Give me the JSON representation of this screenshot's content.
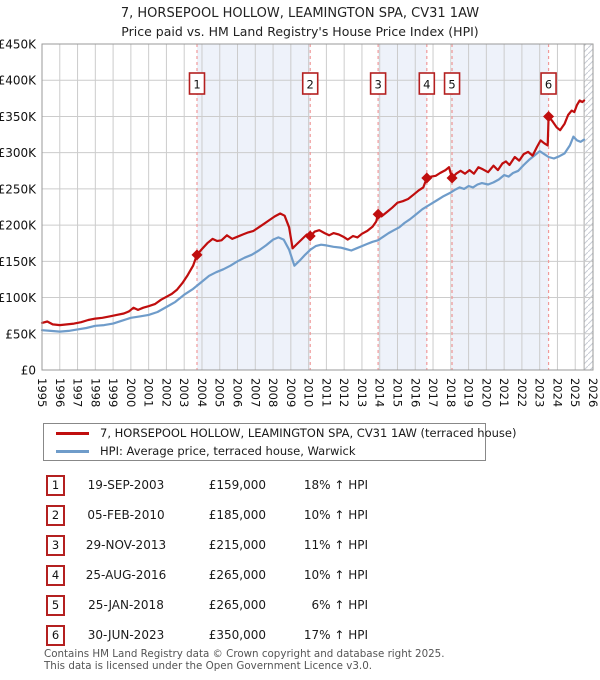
{
  "chart_data": {
    "type": "line",
    "title": "7, HORSEPOOL HOLLOW, LEAMINGTON SPA, CV31 1AW",
    "subtitle": "Price paid vs. HM Land Registry's House Price Index (HPI)",
    "x_range": [
      1995,
      2026
    ],
    "y_range": [
      0,
      450
    ],
    "values_unit": "GBP thousands",
    "grid": true,
    "legend_position": "below",
    "x_ticks": [
      1995,
      1996,
      1997,
      1998,
      1999,
      2000,
      2001,
      2002,
      2003,
      2004,
      2005,
      2006,
      2007,
      2008,
      2009,
      2010,
      2011,
      2012,
      2013,
      2014,
      2015,
      2016,
      2017,
      2018,
      2019,
      2020,
      2021,
      2022,
      2023,
      2024,
      2025,
      2026
    ],
    "y_ticks": [
      {
        "v": 0,
        "label": "£0"
      },
      {
        "v": 50,
        "label": "£50K"
      },
      {
        "v": 100,
        "label": "£100K"
      },
      {
        "v": 150,
        "label": "£150K"
      },
      {
        "v": 200,
        "label": "£200K"
      },
      {
        "v": 250,
        "label": "£250K"
      },
      {
        "v": 300,
        "label": "£300K"
      },
      {
        "v": 350,
        "label": "£350K"
      },
      {
        "v": 400,
        "label": "£400K"
      },
      {
        "v": 450,
        "label": "£450K"
      }
    ],
    "series": [
      {
        "name": "7, HORSEPOOL HOLLOW, LEAMINGTON SPA, CV31 1AW (terraced house)",
        "color": "#c00e0e",
        "points": [
          [
            1995.0,
            65
          ],
          [
            1995.3,
            67
          ],
          [
            1995.6,
            63
          ],
          [
            1996.0,
            62
          ],
          [
            1996.4,
            63
          ],
          [
            1996.8,
            64
          ],
          [
            1997.2,
            66
          ],
          [
            1997.6,
            69
          ],
          [
            1998.0,
            71
          ],
          [
            1998.4,
            72
          ],
          [
            1998.8,
            74
          ],
          [
            1999.2,
            76
          ],
          [
            1999.6,
            78
          ],
          [
            1999.9,
            81
          ],
          [
            2000.15,
            86
          ],
          [
            2000.4,
            83
          ],
          [
            2000.7,
            86
          ],
          [
            2001.0,
            88
          ],
          [
            2001.35,
            91
          ],
          [
            2001.7,
            97
          ],
          [
            2002.0,
            101
          ],
          [
            2002.3,
            105
          ],
          [
            2002.6,
            111
          ],
          [
            2002.9,
            120
          ],
          [
            2003.2,
            131
          ],
          [
            2003.5,
            144
          ],
          [
            2003.72,
            159
          ],
          [
            2004.0,
            167
          ],
          [
            2004.3,
            175
          ],
          [
            2004.6,
            181
          ],
          [
            2004.85,
            178
          ],
          [
            2005.1,
            179
          ],
          [
            2005.4,
            186
          ],
          [
            2005.7,
            181
          ],
          [
            2006.0,
            184
          ],
          [
            2006.3,
            187
          ],
          [
            2006.6,
            190
          ],
          [
            2006.9,
            192
          ],
          [
            2007.2,
            197
          ],
          [
            2007.5,
            202
          ],
          [
            2007.8,
            207
          ],
          [
            2008.1,
            212
          ],
          [
            2008.4,
            216
          ],
          [
            2008.65,
            213
          ],
          [
            2008.9,
            197
          ],
          [
            2009.1,
            168
          ],
          [
            2009.35,
            174
          ],
          [
            2009.6,
            180
          ],
          [
            2009.9,
            187
          ],
          [
            2010.09,
            185
          ],
          [
            2010.35,
            191
          ],
          [
            2010.6,
            193
          ],
          [
            2010.9,
            189
          ],
          [
            2011.15,
            186
          ],
          [
            2011.4,
            189
          ],
          [
            2011.7,
            187
          ],
          [
            2011.95,
            184
          ],
          [
            2012.2,
            180
          ],
          [
            2012.5,
            185
          ],
          [
            2012.75,
            183
          ],
          [
            2013.0,
            188
          ],
          [
            2013.3,
            192
          ],
          [
            2013.6,
            198
          ],
          [
            2013.8,
            205
          ],
          [
            2013.91,
            215
          ],
          [
            2014.1,
            212
          ],
          [
            2014.4,
            218
          ],
          [
            2014.7,
            224
          ],
          [
            2015.0,
            231
          ],
          [
            2015.3,
            233
          ],
          [
            2015.6,
            236
          ],
          [
            2015.9,
            242
          ],
          [
            2016.2,
            248
          ],
          [
            2016.45,
            252
          ],
          [
            2016.65,
            265
          ],
          [
            2016.9,
            267
          ],
          [
            2017.15,
            268
          ],
          [
            2017.4,
            272
          ],
          [
            2017.7,
            276
          ],
          [
            2017.9,
            280
          ],
          [
            2018.0,
            271
          ],
          [
            2018.07,
            265
          ],
          [
            2018.3,
            271
          ],
          [
            2018.55,
            275
          ],
          [
            2018.8,
            271
          ],
          [
            2019.05,
            276
          ],
          [
            2019.3,
            271
          ],
          [
            2019.55,
            280
          ],
          [
            2019.8,
            277
          ],
          [
            2020.1,
            273
          ],
          [
            2020.4,
            282
          ],
          [
            2020.65,
            276
          ],
          [
            2020.9,
            285
          ],
          [
            2021.1,
            288
          ],
          [
            2021.3,
            283
          ],
          [
            2021.6,
            294
          ],
          [
            2021.85,
            289
          ],
          [
            2022.1,
            298
          ],
          [
            2022.35,
            301
          ],
          [
            2022.6,
            296
          ],
          [
            2022.85,
            308
          ],
          [
            2023.05,
            317
          ],
          [
            2023.25,
            313
          ],
          [
            2023.45,
            310
          ],
          [
            2023.5,
            350
          ],
          [
            2023.7,
            344
          ],
          [
            2023.95,
            335
          ],
          [
            2024.15,
            331
          ],
          [
            2024.4,
            340
          ],
          [
            2024.6,
            352
          ],
          [
            2024.8,
            358
          ],
          [
            2024.95,
            356
          ],
          [
            2025.1,
            366
          ],
          [
            2025.25,
            372
          ],
          [
            2025.4,
            370
          ],
          [
            2025.5,
            372
          ]
        ]
      },
      {
        "name": "HPI: Average price, terraced house, Warwick",
        "color": "#6f9cca",
        "points": [
          [
            1995.0,
            55
          ],
          [
            1995.5,
            54
          ],
          [
            1996.0,
            53
          ],
          [
            1996.5,
            54
          ],
          [
            1997.0,
            56
          ],
          [
            1997.5,
            58
          ],
          [
            1998.0,
            61
          ],
          [
            1998.5,
            62
          ],
          [
            1999.0,
            64
          ],
          [
            1999.5,
            68
          ],
          [
            2000.0,
            72
          ],
          [
            2000.5,
            74
          ],
          [
            2001.0,
            76
          ],
          [
            2001.5,
            80
          ],
          [
            2002.0,
            87
          ],
          [
            2002.5,
            94
          ],
          [
            2003.0,
            104
          ],
          [
            2003.5,
            112
          ],
          [
            2004.0,
            122
          ],
          [
            2004.4,
            130
          ],
          [
            2004.8,
            135
          ],
          [
            2005.2,
            139
          ],
          [
            2005.6,
            144
          ],
          [
            2006.0,
            150
          ],
          [
            2006.4,
            155
          ],
          [
            2006.8,
            159
          ],
          [
            2007.2,
            165
          ],
          [
            2007.6,
            172
          ],
          [
            2008.0,
            180
          ],
          [
            2008.3,
            183
          ],
          [
            2008.6,
            180
          ],
          [
            2008.9,
            166
          ],
          [
            2009.2,
            144
          ],
          [
            2009.5,
            151
          ],
          [
            2009.8,
            159
          ],
          [
            2010.1,
            166
          ],
          [
            2010.4,
            171
          ],
          [
            2010.7,
            173
          ],
          [
            2011.0,
            172
          ],
          [
            2011.4,
            170
          ],
          [
            2011.8,
            169
          ],
          [
            2012.1,
            167
          ],
          [
            2012.4,
            165
          ],
          [
            2012.7,
            168
          ],
          [
            2013.0,
            171
          ],
          [
            2013.3,
            174
          ],
          [
            2013.6,
            177
          ],
          [
            2013.9,
            179
          ],
          [
            2014.2,
            184
          ],
          [
            2014.5,
            189
          ],
          [
            2014.8,
            193
          ],
          [
            2015.1,
            197
          ],
          [
            2015.4,
            203
          ],
          [
            2015.7,
            208
          ],
          [
            2016.0,
            214
          ],
          [
            2016.4,
            222
          ],
          [
            2016.8,
            228
          ],
          [
            2017.2,
            234
          ],
          [
            2017.6,
            240
          ],
          [
            2018.0,
            245
          ],
          [
            2018.25,
            249
          ],
          [
            2018.5,
            252
          ],
          [
            2018.75,
            250
          ],
          [
            2019.0,
            254
          ],
          [
            2019.25,
            252
          ],
          [
            2019.5,
            256
          ],
          [
            2019.75,
            258
          ],
          [
            2020.1,
            256
          ],
          [
            2020.4,
            259
          ],
          [
            2020.7,
            263
          ],
          [
            2021.0,
            269
          ],
          [
            2021.25,
            267
          ],
          [
            2021.5,
            272
          ],
          [
            2021.8,
            275
          ],
          [
            2022.1,
            283
          ],
          [
            2022.4,
            290
          ],
          [
            2022.7,
            296
          ],
          [
            2023.0,
            302
          ],
          [
            2023.2,
            299
          ],
          [
            2023.5,
            294
          ],
          [
            2023.8,
            292
          ],
          [
            2024.1,
            295
          ],
          [
            2024.4,
            299
          ],
          [
            2024.7,
            310
          ],
          [
            2024.9,
            322
          ],
          [
            2025.1,
            317
          ],
          [
            2025.3,
            315
          ],
          [
            2025.5,
            318
          ]
        ]
      }
    ],
    "sales": [
      {
        "n": "1",
        "year": 2003.72,
        "price": 159,
        "date": "19-SEP-2003",
        "price_label": "£159,000",
        "pct_label": "18% ↑ HPI"
      },
      {
        "n": "2",
        "year": 2010.09,
        "price": 185,
        "date": "05-FEB-2010",
        "price_label": "£185,000",
        "pct_label": "10% ↑ HPI"
      },
      {
        "n": "3",
        "year": 2013.91,
        "price": 215,
        "date": "29-NOV-2013",
        "price_label": "£215,000",
        "pct_label": "11% ↑ HPI"
      },
      {
        "n": "4",
        "year": 2016.65,
        "price": 265,
        "date": "25-AUG-2016",
        "price_label": "£265,000",
        "pct_label": "10% ↑ HPI"
      },
      {
        "n": "5",
        "year": 2018.07,
        "price": 265,
        "date": "25-JAN-2018",
        "price_label": "£265,000",
        "pct_label": "6% ↑ HPI"
      },
      {
        "n": "6",
        "year": 2023.5,
        "price": 350,
        "date": "30-JUN-2023",
        "price_label": "£350,000",
        "pct_label": "17% ↑ HPI"
      }
    ],
    "owned_bands": [
      [
        2003.72,
        2010.09
      ],
      [
        2013.91,
        2016.65
      ],
      [
        2018.07,
        2023.5
      ]
    ],
    "future_hatch": [
      2025.5,
      2026
    ]
  },
  "colors": {
    "price_line": "#c00e0e",
    "hpi_line": "#6f9cca",
    "owned_band": "#eef2fa",
    "sale_dashed": "#f09a9a",
    "grid": "#cccccc",
    "plot_border": "#999999",
    "numbox_border": "#b42020",
    "hatch_line": "#c8cdd5"
  },
  "legend": {
    "items": [
      {
        "label": "7, HORSEPOOL HOLLOW, LEAMINGTON SPA, CV31 1AW (terraced house)",
        "color": "#c00e0e"
      },
      {
        "label": "HPI: Average price, terraced house, Warwick",
        "color": "#6f9cca"
      }
    ]
  },
  "footer": {
    "line1": "Contains HM Land Registry data © Crown copyright and database right 2025.",
    "line2": "This data is licensed under the Open Government Licence v3.0."
  }
}
